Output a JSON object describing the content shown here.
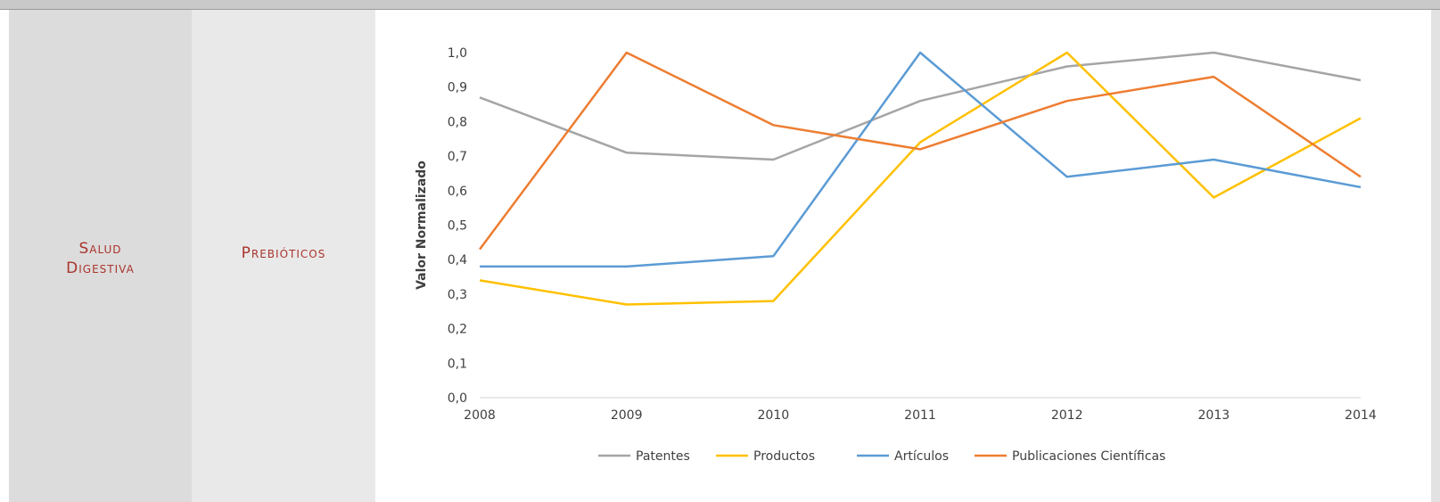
{
  "row": {
    "category": "Salud\nDigestiva",
    "subcategory": "Prebióticos"
  },
  "chart_data": {
    "type": "line",
    "title": "",
    "xlabel": "",
    "ylabel": "Valor Normalizado",
    "x": [
      "2008",
      "2009",
      "2010",
      "2011",
      "2012",
      "2013",
      "2014"
    ],
    "ylim": [
      0,
      1
    ],
    "yticks": [
      "0,0",
      "0,1",
      "0,2",
      "0,3",
      "0,4",
      "0,5",
      "0,6",
      "0,7",
      "0,8",
      "0,9",
      "1,0"
    ],
    "grid": false,
    "legend_position": "bottom",
    "series": [
      {
        "name": "Patentes",
        "color": "#a5a5a5",
        "values": [
          0.87,
          0.71,
          0.69,
          0.86,
          0.96,
          1.0,
          0.92
        ]
      },
      {
        "name": "Productos",
        "color": "#ffc000",
        "values": [
          0.34,
          0.27,
          0.28,
          0.74,
          1.0,
          0.58,
          0.81
        ]
      },
      {
        "name": "Artículos",
        "color": "#5b9bd5",
        "values": [
          0.38,
          0.38,
          0.41,
          1.0,
          0.64,
          0.69,
          0.61
        ]
      },
      {
        "name": "Publicaciones Científicas",
        "color": "#ed7d31",
        "values": [
          0.43,
          1.0,
          0.79,
          0.72,
          0.86,
          0.93,
          0.64
        ]
      }
    ]
  }
}
